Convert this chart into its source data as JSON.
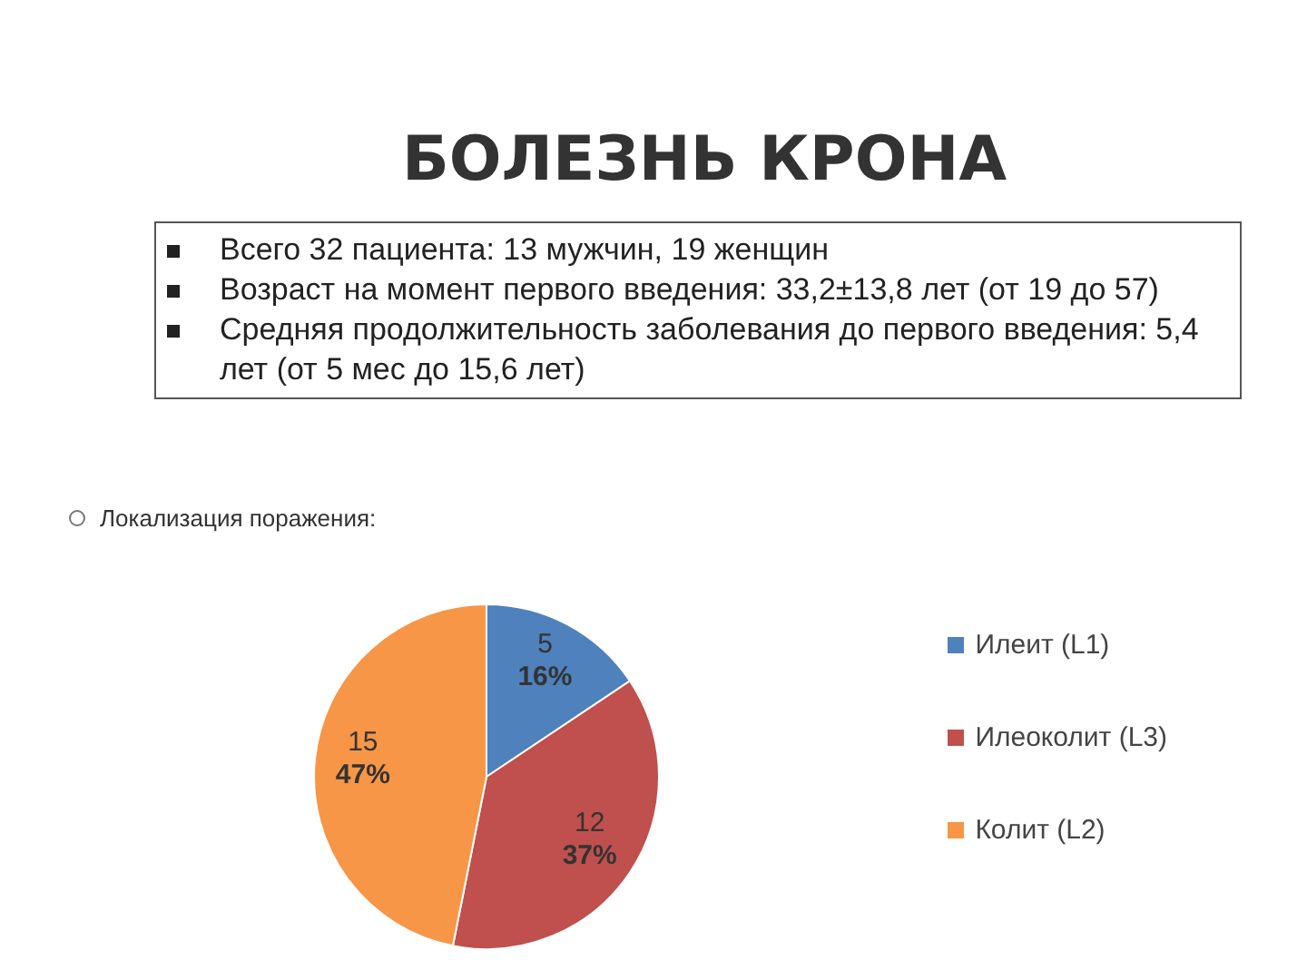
{
  "chart_data": {
    "type": "pie",
    "title": "БОЛЕЗНЬ КРОНА",
    "annotations": [
      "Всего 32 пациента: 13 мужчин, 19 женщин",
      "Возраст на момент первого введения: 33,2±13,8 лет (от 19 до 57)",
      "Средняя продолжительность заболевания до первого введения: 5,4 лет (от 5 мес до 15,6 лет)",
      "Локализация поражения:"
    ],
    "categories": [
      "Илеит (L1)",
      "Илеоколит (L3)",
      "Колит (L2)"
    ],
    "values": [
      5,
      12,
      15
    ],
    "colors": [
      "#4f81bd",
      "#c0504d",
      "#f79646"
    ],
    "value_labels": [
      "5 16%",
      "12 37%",
      "15 47%"
    ],
    "legend": "right"
  }
}
